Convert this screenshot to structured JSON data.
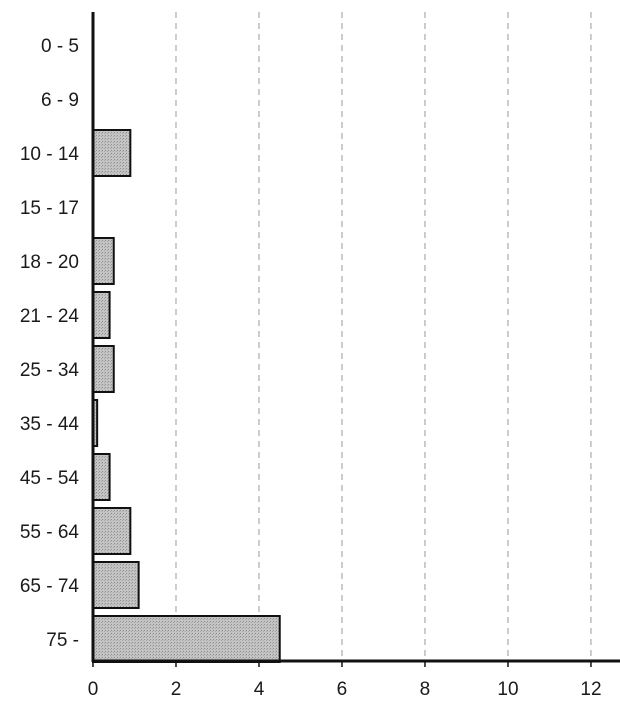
{
  "chart_data": {
    "type": "bar",
    "orientation": "horizontal",
    "title": "",
    "xlabel": "",
    "ylabel": "",
    "categories": [
      "0 - 5",
      "6 - 9",
      "10 - 14",
      "15 - 17",
      "18 - 20",
      "21 - 24",
      "25 - 34",
      "35 - 44",
      "45 - 54",
      "55 - 64",
      "65 - 74",
      "75 -"
    ],
    "values": [
      0,
      0,
      0.9,
      0,
      0.5,
      0.4,
      0.5,
      0.1,
      0.4,
      0.9,
      1.1,
      4.5
    ],
    "xlim": [
      0,
      12.7
    ],
    "xticks": [
      0,
      2,
      4,
      6,
      8,
      10,
      12
    ],
    "xtick_labels": [
      "0",
      "2",
      "4",
      "6",
      "8",
      "10",
      "12"
    ],
    "grid": "vertical dashed",
    "legend": "none",
    "colors": {
      "bar_fill": "#b8b8b8",
      "bar_stroke": "#111111",
      "axis": "#111111",
      "grid": "#9a9a9a"
    }
  }
}
